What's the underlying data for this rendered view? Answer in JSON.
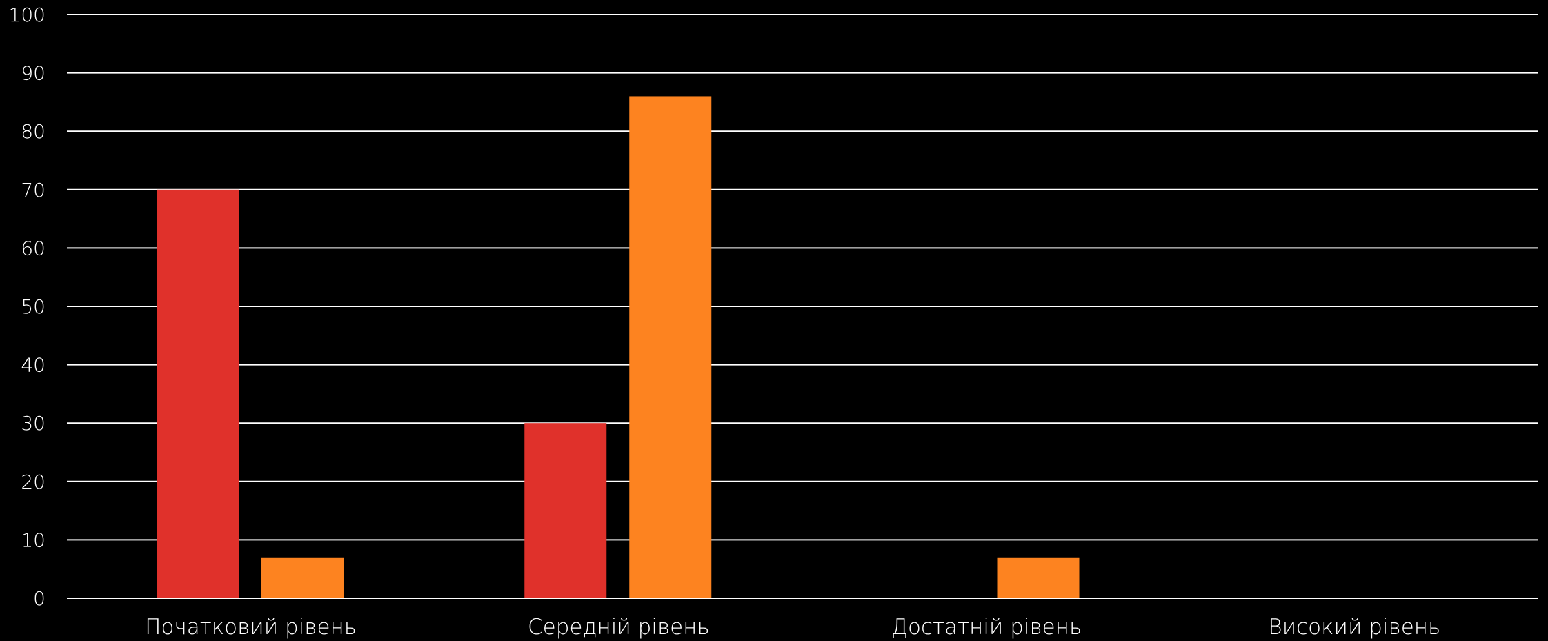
{
  "chart_data": {
    "type": "bar",
    "categories": [
      "Початковий рівень",
      "Середній рівень",
      "Достатній рівень",
      "Високий рівень"
    ],
    "series": [
      {
        "values": [
          70,
          30,
          0,
          0
        ],
        "color": "#e0312b"
      },
      {
        "values": [
          7,
          86,
          7,
          0
        ],
        "color": "#fd8320"
      }
    ],
    "ylim": [
      0,
      100
    ],
    "yticks": [
      0,
      10,
      20,
      30,
      40,
      50,
      60,
      70,
      80,
      90,
      100
    ],
    "grid": true,
    "background": "#000000",
    "text_color": "#ffffff"
  }
}
